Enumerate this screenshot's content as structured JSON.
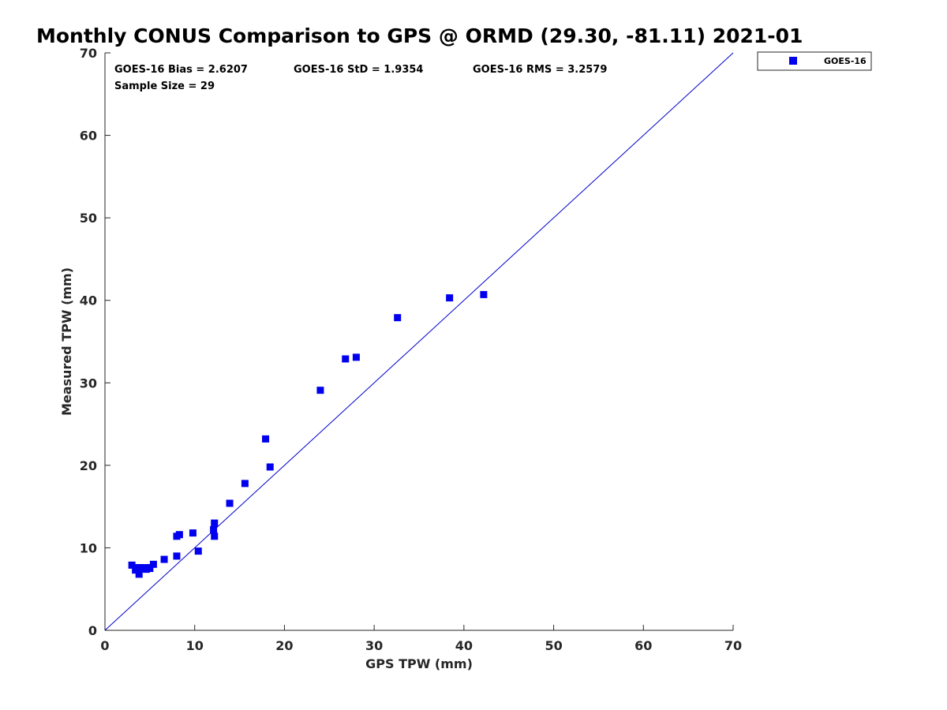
{
  "chart_data": {
    "type": "scatter",
    "title": "Monthly CONUS Comparison to GPS @ ORMD (29.30, -81.11) 2021-01",
    "xlabel": "GPS TPW (mm)",
    "ylabel": "Measured TPW (mm)",
    "xlim": [
      0,
      70
    ],
    "ylim": [
      0,
      70
    ],
    "xticks": [
      "0",
      "10",
      "20",
      "30",
      "40",
      "50",
      "60",
      "70"
    ],
    "yticks": [
      "0",
      "10",
      "20",
      "30",
      "40",
      "50",
      "60",
      "70"
    ],
    "grid": false,
    "legend_position": "outside-top-right",
    "reference_line": {
      "type": "one-to-one",
      "x": [
        0,
        70
      ],
      "y": [
        0,
        70
      ],
      "color": "#0000cc"
    },
    "stats": {
      "bias": "GOES-16 Bias = 2.6207",
      "std": "GOES-16 StD = 1.9354",
      "rms": "GOES-16 RMS = 3.2579",
      "sample_size": "Sample Size = 29"
    },
    "series": [
      {
        "name": "GOES-16",
        "color": "#0000ee",
        "marker": "square",
        "points": [
          [
            3.0,
            7.9
          ],
          [
            3.4,
            7.3
          ],
          [
            3.6,
            7.6
          ],
          [
            3.8,
            6.8
          ],
          [
            4.0,
            7.6
          ],
          [
            4.3,
            7.5
          ],
          [
            4.6,
            7.4
          ],
          [
            4.8,
            7.6
          ],
          [
            5.0,
            7.5
          ],
          [
            5.4,
            8.0
          ],
          [
            6.6,
            8.6
          ],
          [
            8.0,
            9.0
          ],
          [
            8.0,
            11.4
          ],
          [
            8.3,
            11.6
          ],
          [
            9.8,
            11.8
          ],
          [
            10.4,
            9.6
          ],
          [
            12.1,
            12.2
          ],
          [
            12.2,
            13.0
          ],
          [
            12.2,
            11.4
          ],
          [
            13.9,
            15.4
          ],
          [
            15.6,
            17.8
          ],
          [
            17.9,
            23.2
          ],
          [
            18.4,
            19.8
          ],
          [
            24.0,
            29.1
          ],
          [
            26.8,
            32.9
          ],
          [
            28.0,
            33.1
          ],
          [
            32.6,
            37.9
          ],
          [
            38.4,
            40.3
          ],
          [
            42.2,
            40.7
          ]
        ]
      }
    ]
  }
}
